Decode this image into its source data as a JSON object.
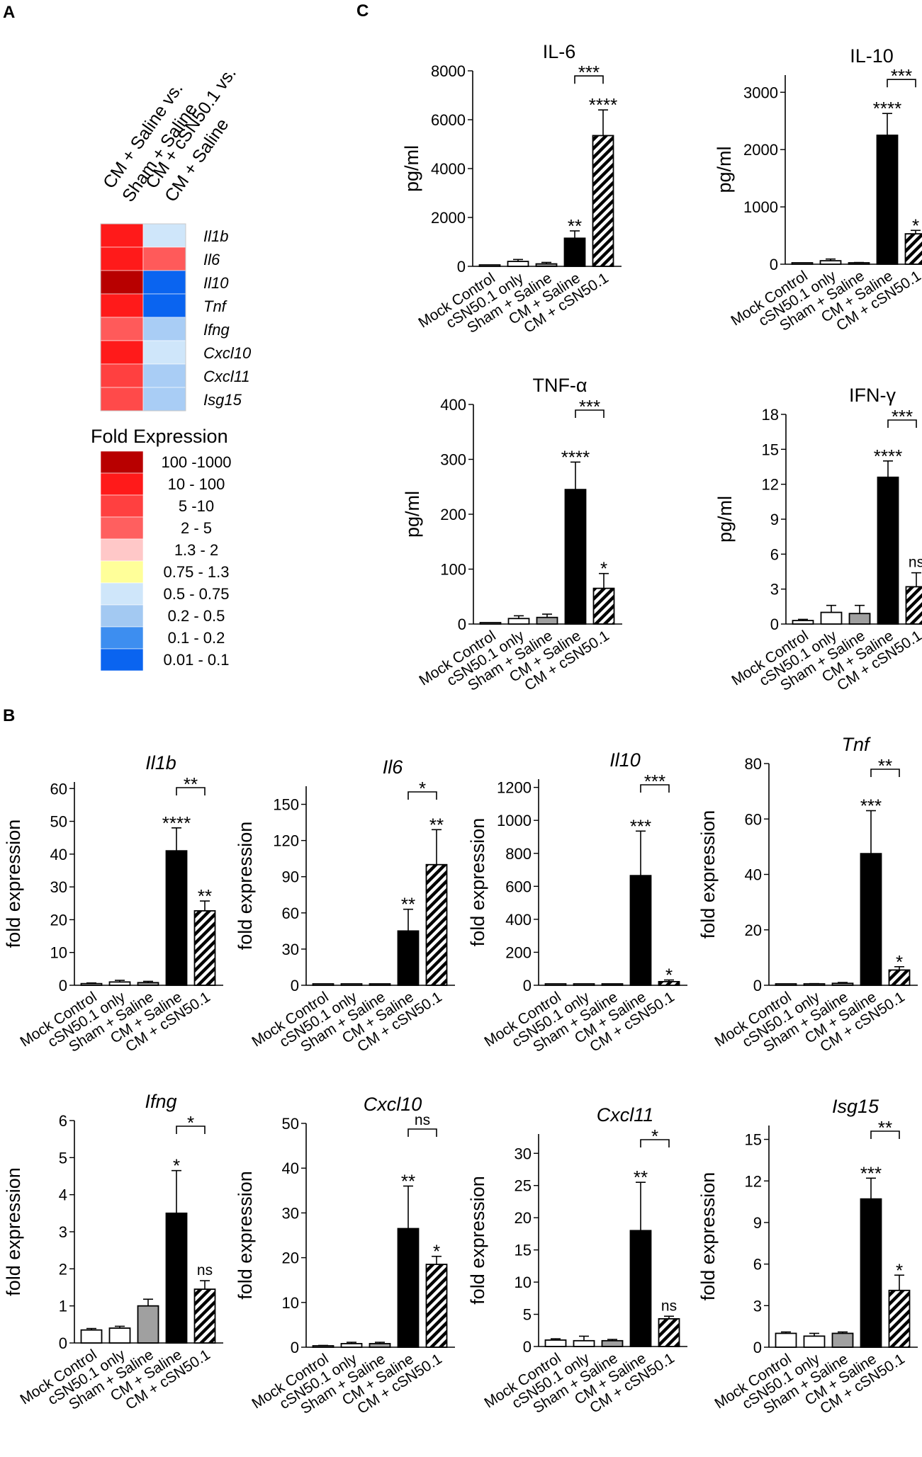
{
  "panel_labels": {
    "a": "A",
    "b": "B",
    "c": "C"
  },
  "heatmap": {
    "column_labels": [
      [
        "CM + Saline vs.",
        "Sham + Saline"
      ],
      [
        "CM + cSN50.1 vs.",
        "CM + Saline"
      ]
    ],
    "genes": [
      "Il1b",
      "Il6",
      "Il10",
      "Tnf",
      "Ifng",
      "Cxcl10",
      "Cxcl11",
      "Isg15"
    ],
    "cells": [
      [
        "#ff1a1a",
        "#cfe6fa"
      ],
      [
        "#ff1a1a",
        "#ff5a5a"
      ],
      [
        "#b80000",
        "#0a64f0"
      ],
      [
        "#ff1a1a",
        "#0a64f0"
      ],
      [
        "#ff5a5a",
        "#a9cdf5"
      ],
      [
        "#ff1a1a",
        "#cfe6fa"
      ],
      [
        "#ff4040",
        "#a9cdf5"
      ],
      [
        "#ff4a4a",
        "#a9cdf5"
      ]
    ],
    "legend_title": "Fold Expression",
    "legend": [
      {
        "label": "100 -1000",
        "color": "#b80000"
      },
      {
        "label": "10 - 100",
        "color": "#ff1a1a"
      },
      {
        "label": "5 -10",
        "color": "#ff4040"
      },
      {
        "label": "2 - 5",
        "color": "#ff5f5f"
      },
      {
        "label": "1.3 - 2",
        "color": "#ffc8c8"
      },
      {
        "label": "0.75 - 1.3",
        "color": "#ffff99"
      },
      {
        "label": "0.5 - 0.75",
        "color": "#cfe6fa"
      },
      {
        "label": "0.2 - 0.5",
        "color": "#a3c9f2"
      },
      {
        "label": "0.1 - 0.2",
        "color": "#3d8ef0"
      },
      {
        "label": "0.01 - 0.1",
        "color": "#0a64f0"
      }
    ]
  },
  "chart_data": [
    {
      "id": "c1",
      "type": "bar",
      "title": "IL-6",
      "title_italic": false,
      "ylabel": "pg/ml",
      "categories": [
        "Mock Control",
        "cSN50.1 only",
        "Sham + Saline",
        "CM + Saline",
        "CM + cSN50.1"
      ],
      "values": [
        0,
        200,
        100,
        1150,
        5350
      ],
      "errors": [
        0,
        80,
        60,
        300,
        1050
      ],
      "ylim": [
        0,
        8000
      ],
      "yticks": [
        0,
        2000,
        4000,
        6000,
        8000
      ],
      "stars": [
        "",
        "",
        "",
        "**",
        "****"
      ],
      "bracket": "***"
    },
    {
      "id": "c2",
      "type": "bar",
      "title": "IL-10",
      "title_italic": false,
      "ylabel": "pg/ml",
      "categories": [
        "Mock Control",
        "cSN50.1 only",
        "Sham + Saline",
        "CM + Saline",
        "CM + cSN50.1"
      ],
      "values": [
        0,
        60,
        20,
        2250,
        530
      ],
      "errors": [
        0,
        30,
        10,
        380,
        60
      ],
      "ylim": [
        0,
        3300
      ],
      "yticks": [
        0,
        1000,
        2000,
        3000
      ],
      "stars": [
        "",
        "",
        "",
        "****",
        "*"
      ],
      "bracket": "***"
    },
    {
      "id": "c3",
      "type": "bar",
      "title": "TNF-α",
      "title_italic": false,
      "ylabel": "pg/ml",
      "categories": [
        "Mock Control",
        "cSN50.1 only",
        "Sham + Saline",
        "CM + Saline",
        "CM + cSN50.1"
      ],
      "values": [
        2,
        10,
        12,
        245,
        65
      ],
      "errors": [
        0,
        5,
        6,
        50,
        27
      ],
      "ylim": [
        0,
        400
      ],
      "yticks": [
        0,
        100,
        200,
        300,
        400
      ],
      "stars": [
        "",
        "",
        "",
        "****",
        "*"
      ],
      "bracket": "***"
    },
    {
      "id": "c4",
      "type": "bar",
      "title": "IFN-γ",
      "title_italic": false,
      "ylabel": "pg/ml",
      "categories": [
        "Mock Control",
        "cSN50.1 only",
        "Sham + Saline",
        "CM + Saline",
        "CM + cSN50.1"
      ],
      "values": [
        0.3,
        1.0,
        0.9,
        12.6,
        3.2
      ],
      "errors": [
        0.1,
        0.6,
        0.7,
        1.4,
        1.2
      ],
      "ylim": [
        0,
        18
      ],
      "yticks": [
        0,
        3,
        6,
        9,
        12,
        15,
        18
      ],
      "stars": [
        "",
        "",
        "",
        "****",
        "ns"
      ],
      "bracket": "***"
    },
    {
      "id": "b1",
      "type": "bar",
      "title": "Il1b",
      "title_italic": true,
      "ylabel": "fold expression",
      "categories": [
        "Mock Control",
        "cSN50.1 only",
        "Sham + Saline",
        "CM + Saline",
        "CM + cSN50.1"
      ],
      "values": [
        0.5,
        1.0,
        0.8,
        41,
        22.7
      ],
      "errors": [
        0.2,
        0.5,
        0.4,
        7,
        3
      ],
      "ylim": [
        0,
        62
      ],
      "yticks": [
        0,
        10,
        20,
        30,
        40,
        50,
        60
      ],
      "stars": [
        "",
        "",
        "",
        "****",
        "**"
      ],
      "bracket": "**"
    },
    {
      "id": "b2",
      "type": "bar",
      "title": "Il6",
      "title_italic": true,
      "ylabel": "fold expression",
      "categories": [
        "Mock Control",
        "cSN50.1 only",
        "Sham + Saline",
        "CM + Saline",
        "CM + cSN50.1"
      ],
      "values": [
        0.5,
        0.3,
        0.3,
        45,
        100
      ],
      "errors": [
        0.2,
        0.1,
        0.1,
        18,
        29
      ],
      "ylim": [
        0,
        165
      ],
      "yticks": [
        0,
        30,
        60,
        90,
        120,
        150
      ],
      "stars": [
        "",
        "",
        "",
        "**",
        "**"
      ],
      "bracket": "*"
    },
    {
      "id": "b3",
      "type": "bar",
      "title": "Il10",
      "title_italic": true,
      "ylabel": "fold expression",
      "categories": [
        "Mock Control",
        "cSN50.1 only",
        "Sham + Saline",
        "CM + Saline",
        "CM + cSN50.1"
      ],
      "values": [
        0,
        0,
        0,
        665,
        22
      ],
      "errors": [
        0,
        0,
        0,
        270,
        10
      ],
      "ylim": [
        0,
        1250
      ],
      "yticks": [
        0,
        200,
        400,
        600,
        800,
        1000,
        1200
      ],
      "stars": [
        "",
        "",
        "",
        "***",
        "*"
      ],
      "bracket": "***"
    },
    {
      "id": "b4",
      "type": "bar",
      "title": "Tnf",
      "title_italic": true,
      "ylabel": "fold expression",
      "categories": [
        "Mock Control",
        "cSN50.1 only",
        "Sham + Saline",
        "CM + Saline",
        "CM + cSN50.1"
      ],
      "values": [
        0.3,
        0.4,
        0.7,
        47.5,
        5.5
      ],
      "errors": [
        0.1,
        0.2,
        0.3,
        15.5,
        1.2
      ],
      "ylim": [
        0,
        80
      ],
      "yticks": [
        0,
        20,
        40,
        60,
        80
      ],
      "stars": [
        "",
        "",
        "",
        "***",
        "*"
      ],
      "bracket": "**"
    },
    {
      "id": "b5",
      "type": "bar",
      "title": "Ifng",
      "title_italic": true,
      "ylabel": "fold expression",
      "categories": [
        "Mock Control",
        "cSN50.1 only",
        "Sham + Saline",
        "CM + Saline",
        "CM + cSN50.1"
      ],
      "values": [
        0.35,
        0.4,
        1.0,
        3.5,
        1.45
      ],
      "errors": [
        0.04,
        0.05,
        0.18,
        1.15,
        0.23
      ],
      "ylim": [
        0,
        6
      ],
      "yticks": [
        0,
        1,
        2,
        3,
        4,
        5,
        6
      ],
      "stars": [
        "",
        "",
        "",
        "*",
        "ns"
      ],
      "bracket": "*"
    },
    {
      "id": "b6",
      "type": "bar",
      "title": "Cxcl10",
      "title_italic": true,
      "ylabel": "fold expression",
      "categories": [
        "Mock Control",
        "cSN50.1 only",
        "Sham + Saline",
        "CM + Saline",
        "CM + cSN50.1"
      ],
      "values": [
        0.3,
        0.8,
        0.8,
        26.5,
        18.5
      ],
      "errors": [
        0.1,
        0.3,
        0.3,
        9.5,
        1.8
      ],
      "ylim": [
        0,
        50
      ],
      "yticks": [
        0,
        10,
        20,
        30,
        40,
        50
      ],
      "stars": [
        "",
        "",
        "",
        "**",
        "*"
      ],
      "bracket": "ns"
    },
    {
      "id": "b7",
      "type": "bar",
      "title": "Cxcl11",
      "title_italic": true,
      "ylabel": "fold expression",
      "categories": [
        "Mock Control",
        "cSN50.1 only",
        "Sham + Saline",
        "CM + Saline",
        "CM + cSN50.1"
      ],
      "values": [
        1.0,
        0.9,
        0.9,
        18,
        4.3
      ],
      "errors": [
        0.2,
        0.7,
        0.2,
        7.5,
        0.4
      ],
      "ylim": [
        0,
        33
      ],
      "yticks": [
        0,
        5,
        10,
        15,
        20,
        25,
        30
      ],
      "stars": [
        "",
        "",
        "",
        "**",
        "ns"
      ],
      "bracket": "*"
    },
    {
      "id": "b8",
      "type": "bar",
      "title": "Isg15",
      "title_italic": true,
      "ylabel": "fold expression",
      "categories": [
        "Mock Control",
        "cSN50.1 only",
        "Sham + Saline",
        "CM + Saline",
        "CM + cSN50.1"
      ],
      "values": [
        1.0,
        0.8,
        1.0,
        10.7,
        4.1
      ],
      "errors": [
        0.1,
        0.2,
        0.1,
        1.5,
        1.1
      ],
      "ylim": [
        0,
        16
      ],
      "yticks": [
        0,
        3,
        6,
        9,
        12,
        15
      ],
      "stars": [
        "",
        "",
        "",
        "***",
        "*"
      ],
      "bracket": "**"
    }
  ],
  "bar_colors": [
    "#ffffff",
    "#ffffff",
    "#a0a0a0",
    "#000000",
    "hatch"
  ]
}
